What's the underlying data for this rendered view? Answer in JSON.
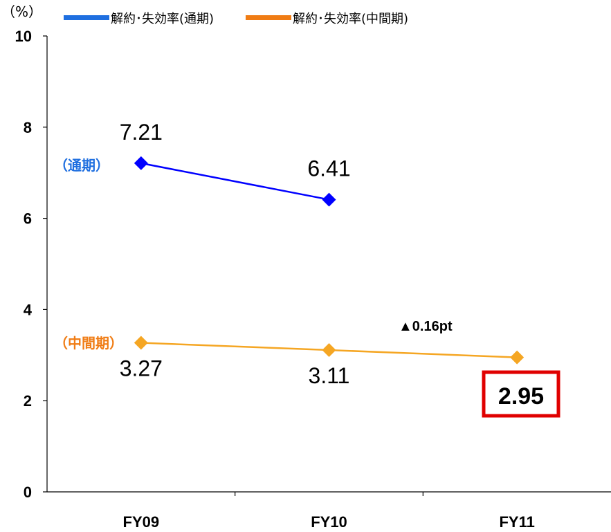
{
  "chart_data": {
    "type": "line",
    "unit_label": "（%）",
    "categories": [
      "FY09",
      "FY10",
      "FY11"
    ],
    "ylim": [
      0,
      10
    ],
    "yticks": [
      0,
      2,
      4,
      6,
      8,
      10
    ],
    "grid": false,
    "legend_position": "top",
    "series": [
      {
        "name": "解約･失効率(通期)",
        "tag": "（通期）",
        "color": "#0000ff",
        "legend_color": "#1f6fe0",
        "tag_color": "#1f6fe0",
        "values": [
          7.21,
          6.41,
          null
        ],
        "labels": [
          "7.21",
          "6.41",
          ""
        ]
      },
      {
        "name": "解約･失効率(中間期)",
        "tag": "（中間期）",
        "color": "#f5a623",
        "legend_color": "#f07c14",
        "tag_color": "#f07c14",
        "values": [
          3.27,
          3.11,
          2.95
        ],
        "labels": [
          "3.27",
          "3.11",
          "2.95"
        ]
      }
    ],
    "annotations": {
      "delta": "▲0.16pt",
      "highlight_value": "2.95",
      "highlight_color": "#e00000"
    }
  }
}
